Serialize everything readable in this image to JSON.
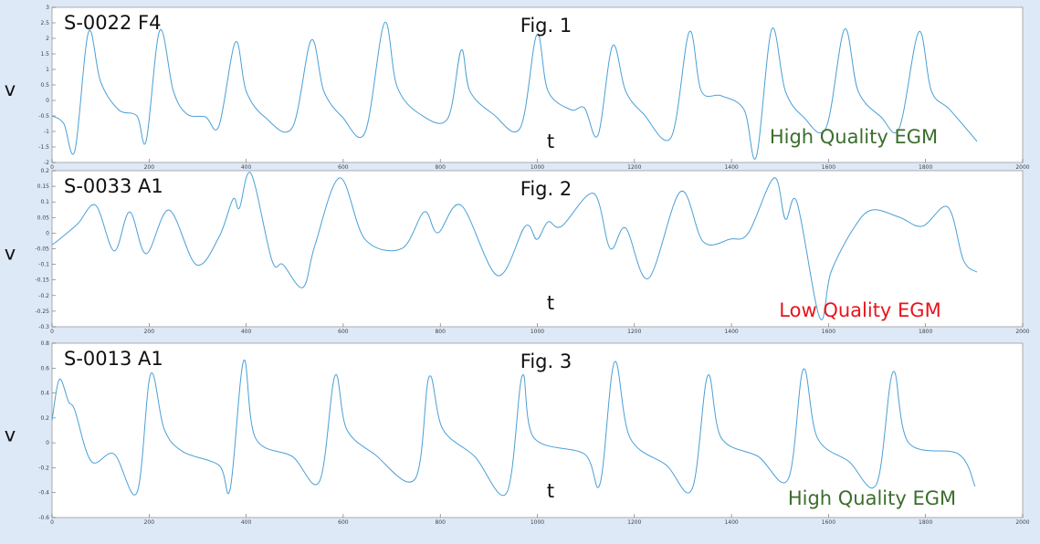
{
  "chart_data": [
    {
      "type": "line",
      "title": "Fig. 1",
      "label": "S-0022 F4",
      "xlabel": "t",
      "ylabel": "v",
      "annotation": "High Quality EGM",
      "annotation_color": "#3b6e2b",
      "xlim": [
        0,
        2000
      ],
      "xticks": [
        0,
        200,
        400,
        600,
        800,
        1000,
        1200,
        1400,
        1600,
        1800,
        2000
      ],
      "ylim": [
        -2,
        3
      ],
      "yticks": [
        -2,
        -1.5,
        -1,
        -0.5,
        0,
        0.5,
        1,
        1.5,
        2,
        2.5,
        3
      ],
      "x": [
        0,
        24,
        47,
        75,
        100,
        137,
        175,
        194,
        222,
        250,
        278,
        316,
        344,
        378,
        400,
        438,
        495,
        534,
        560,
        598,
        645,
        685,
        711,
        758,
        815,
        843,
        861,
        909,
        965,
        999,
        1022,
        1069,
        1097,
        1125,
        1155,
        1182,
        1219,
        1276,
        1313,
        1338,
        1379,
        1426,
        1451,
        1483,
        1511,
        1548,
        1595,
        1633,
        1661,
        1708,
        1746,
        1786,
        1812,
        1850,
        1906
      ],
      "series": [
        {
          "color": "#4a9fd6",
          "values": [
            -0.5,
            -0.74,
            -1.62,
            2.2,
            0.6,
            -0.3,
            -0.5,
            -1.3,
            2.26,
            0.3,
            -0.44,
            -0.53,
            -0.82,
            1.88,
            0.3,
            -0.53,
            -0.88,
            1.94,
            0.3,
            -0.53,
            -1.03,
            2.5,
            0.44,
            -0.44,
            -0.59,
            1.62,
            0.3,
            -0.44,
            -0.88,
            2.12,
            0.3,
            -0.3,
            -0.24,
            -1.12,
            1.76,
            0.3,
            -0.44,
            -1.18,
            2.21,
            0.3,
            0.15,
            -0.3,
            -1.82,
            2.29,
            0.3,
            -0.53,
            -0.88,
            2.29,
            0.3,
            -0.53,
            -0.88,
            2.21,
            0.3,
            -0.3,
            -1.32
          ]
        }
      ]
    },
    {
      "type": "line",
      "title": "Fig. 2",
      "label": "S-0033 A1",
      "xlabel": "t",
      "ylabel": "v",
      "annotation": "Low Quality EGM",
      "annotation_color": "#e8141b",
      "xlim": [
        0,
        2000
      ],
      "xticks": [
        0,
        200,
        400,
        600,
        800,
        1000,
        1200,
        1400,
        1600,
        1800,
        2000
      ],
      "ylim": [
        -0.3,
        0.2
      ],
      "yticks": [
        -0.3,
        -0.25,
        -0.2,
        -0.15,
        -0.1,
        -0.05,
        0,
        0.05,
        0.1,
        0.15,
        0.2
      ],
      "x": [
        0,
        15,
        53,
        90,
        128,
        160,
        194,
        241,
        297,
        344,
        373,
        386,
        410,
        453,
        476,
        517,
        542,
        593,
        645,
        721,
        767,
        795,
        843,
        918,
        975,
        999,
        1022,
        1050,
        1116,
        1150,
        1182,
        1229,
        1295,
        1342,
        1398,
        1435,
        1488,
        1511,
        1535,
        1582,
        1605,
        1652,
        1689,
        1746,
        1793,
        1846,
        1878,
        1906
      ],
      "series": [
        {
          "color": "#4a9fd6",
          "values": [
            -0.037,
            -0.02,
            0.03,
            0.089,
            -0.057,
            0.068,
            -0.066,
            0.074,
            -0.101,
            -0.013,
            0.109,
            0.08,
            0.191,
            -0.087,
            -0.101,
            -0.174,
            -0.037,
            0.177,
            -0.02,
            -0.049,
            0.068,
            0.001,
            0.089,
            -0.136,
            0.022,
            -0.02,
            0.036,
            0.022,
            0.127,
            -0.049,
            0.016,
            -0.145,
            0.133,
            -0.028,
            -0.019,
            0.001,
            0.177,
            0.045,
            0.098,
            -0.271,
            -0.125,
            0.016,
            0.074,
            0.051,
            0.022,
            0.083,
            -0.087,
            -0.125
          ]
        }
      ]
    },
    {
      "type": "line",
      "title": "Fig. 3",
      "label": "S-0013 A1",
      "xlabel": "t",
      "ylabel": "v",
      "annotation": "High Quality EGM",
      "annotation_color": "#3b6e2b",
      "xlim": [
        0,
        2000
      ],
      "xticks": [
        0,
        200,
        400,
        600,
        800,
        1000,
        1200,
        1400,
        1600,
        1800,
        2000
      ],
      "ylim": [
        -0.6,
        0.8
      ],
      "yticks": [
        -0.6,
        -0.4,
        -0.2,
        0,
        0.2,
        0.4,
        0.6,
        0.8
      ],
      "x": [
        0,
        15,
        34,
        47,
        81,
        128,
        175,
        203,
        231,
        269,
        344,
        367,
        395,
        419,
        495,
        551,
        583,
        607,
        664,
        748,
        777,
        805,
        871,
        937,
        969,
        993,
        1097,
        1129,
        1159,
        1191,
        1266,
        1319,
        1351,
        1379,
        1455,
        1517,
        1548,
        1577,
        1642,
        1699,
        1733,
        1765,
        1868,
        1902
      ],
      "series": [
        {
          "color": "#4a9fd6",
          "values": [
            0.18,
            0.51,
            0.33,
            0.26,
            -0.15,
            -0.09,
            -0.4,
            0.55,
            0.11,
            -0.07,
            -0.18,
            -0.37,
            0.66,
            0.04,
            -0.11,
            -0.31,
            0.54,
            0.11,
            -0.09,
            -0.29,
            0.53,
            0.11,
            -0.11,
            -0.4,
            0.54,
            0.04,
            -0.09,
            -0.33,
            0.65,
            0.04,
            -0.18,
            -0.37,
            0.54,
            0.04,
            -0.11,
            -0.29,
            0.59,
            0.04,
            -0.15,
            -0.33,
            0.57,
            0,
            -0.09,
            -0.35
          ]
        }
      ]
    }
  ]
}
